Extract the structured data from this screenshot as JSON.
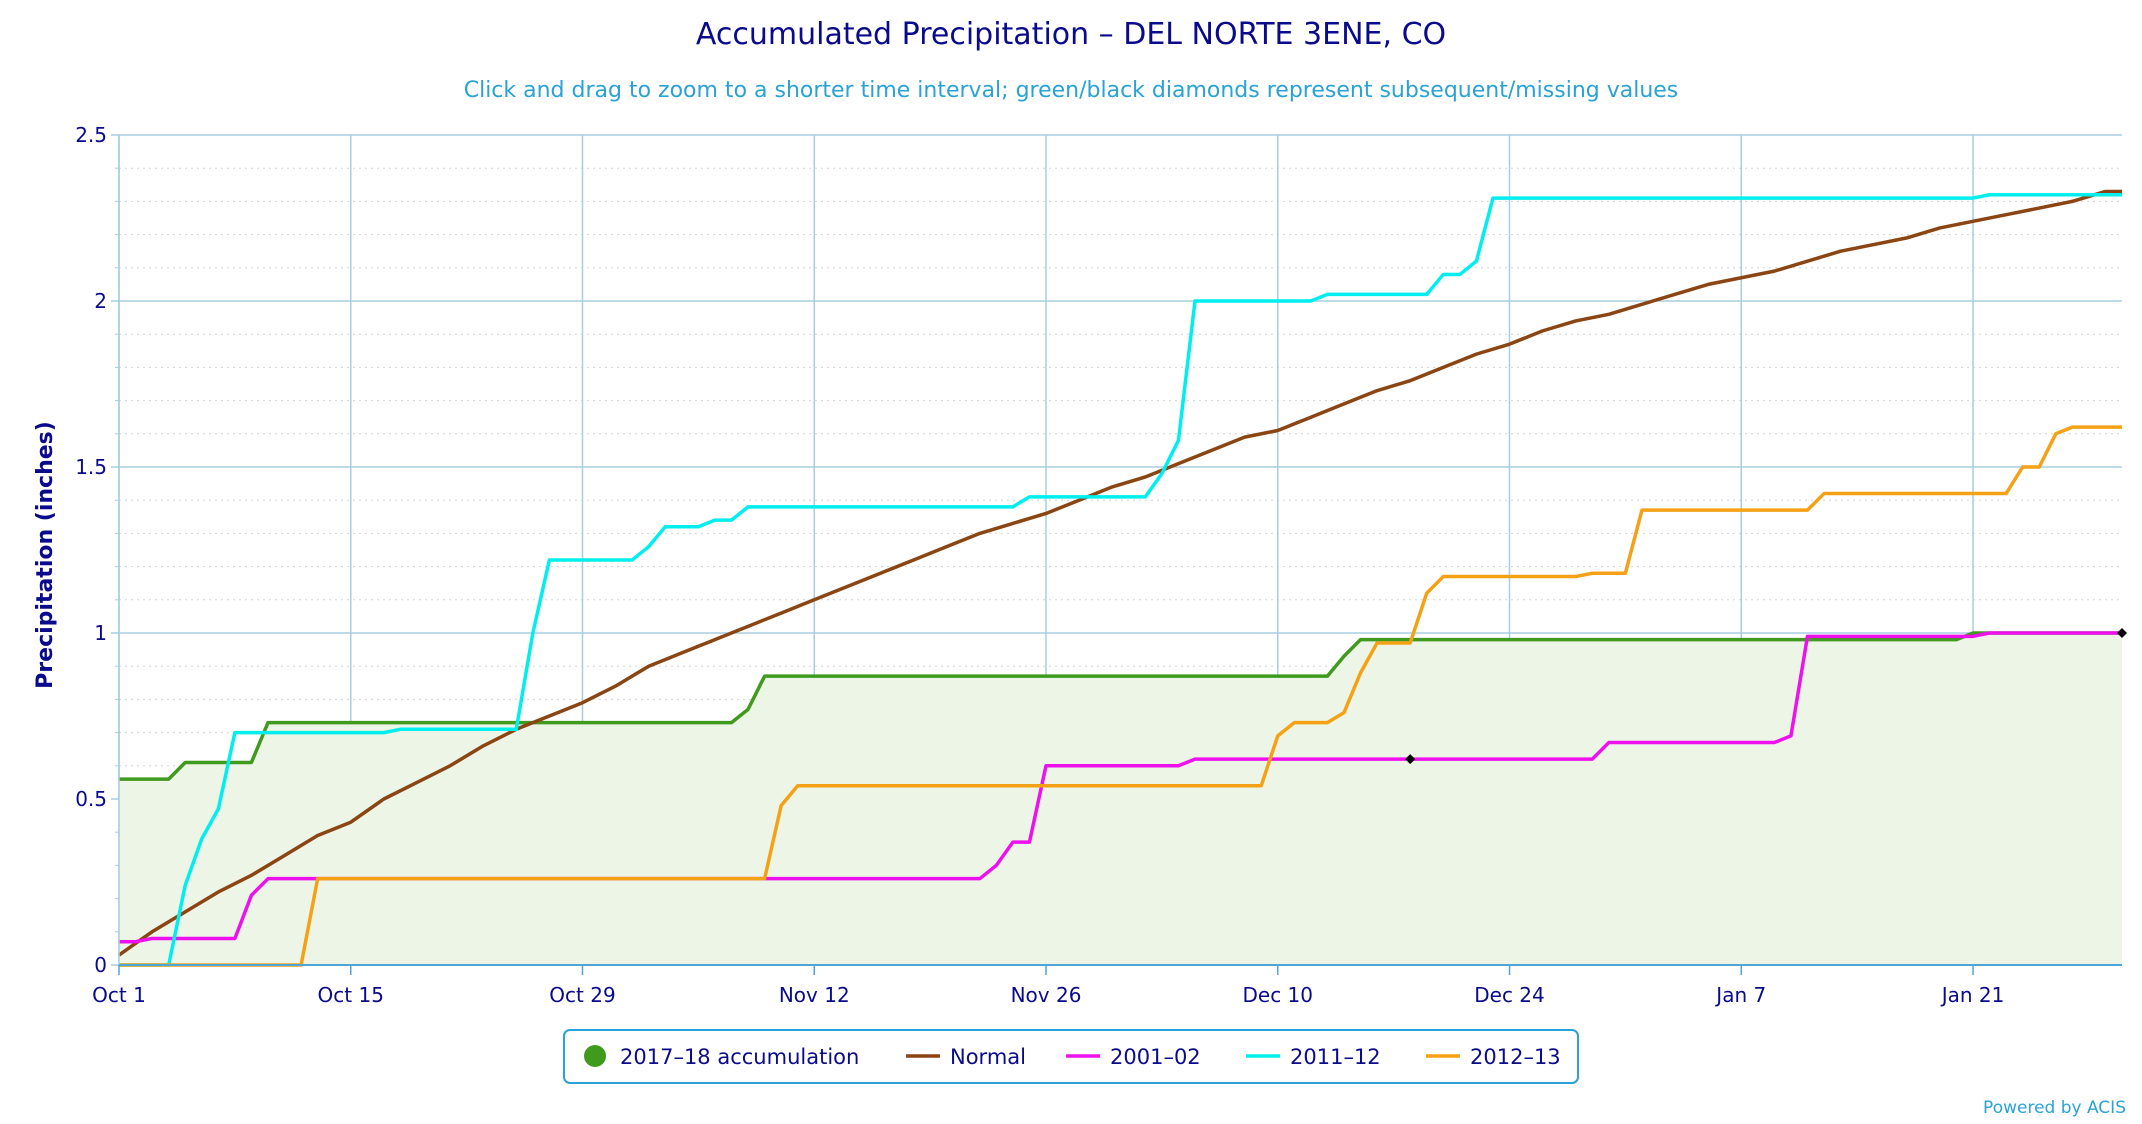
{
  "colors": {
    "title": "#0a0a8c",
    "subtitle": "#2aa2d6",
    "grid_major": "#a9cde0",
    "grid_minor": "#d4d4d4",
    "axis": "#4fa6d6",
    "fill_2017": "#edf5e6"
  },
  "chart_data": {
    "type": "line",
    "title": "Accumulated Precipitation – DEL NORTE 3ENE, CO",
    "subtitle": "Click and drag to zoom to a shorter time interval; green/black diamonds represent subsequent/missing values",
    "ylabel": "Precipitation (inches)",
    "xlabel": "",
    "x_unit": "days since Oct 1",
    "xlim": [
      0,
      121
    ],
    "ylim": [
      0,
      2.5
    ],
    "x_ticks": [
      {
        "x": 0,
        "label": "Oct 1"
      },
      {
        "x": 14,
        "label": "Oct 15"
      },
      {
        "x": 28,
        "label": "Oct 29"
      },
      {
        "x": 42,
        "label": "Nov 12"
      },
      {
        "x": 56,
        "label": "Nov 26"
      },
      {
        "x": 70,
        "label": "Dec 10"
      },
      {
        "x": 84,
        "label": "Dec 24"
      },
      {
        "x": 98,
        "label": "Jan 7"
      },
      {
        "x": 112,
        "label": "Jan 21"
      }
    ],
    "y_ticks": [
      {
        "y": 0,
        "label": "0"
      },
      {
        "y": 0.5,
        "label": "0.5"
      },
      {
        "y": 1,
        "label": "1"
      },
      {
        "y": 1.5,
        "label": "1.5"
      },
      {
        "y": 2,
        "label": "2"
      },
      {
        "y": 2.5,
        "label": "2.5"
      }
    ],
    "grid": true,
    "legend_position": "bottom-center",
    "series": [
      {
        "name": "2017–18 accumulation",
        "color": "#3f9a1d",
        "fill": true,
        "legend_symbol": "circle",
        "points": [
          [
            0,
            0.56
          ],
          [
            3,
            0.56
          ],
          [
            4,
            0.61
          ],
          [
            7,
            0.61
          ],
          [
            8,
            0.61
          ],
          [
            9,
            0.73
          ],
          [
            14,
            0.73
          ],
          [
            36,
            0.73
          ],
          [
            37,
            0.73
          ],
          [
            38,
            0.77
          ],
          [
            39,
            0.87
          ],
          [
            40,
            0.87
          ],
          [
            56,
            0.87
          ],
          [
            73,
            0.87
          ],
          [
            74,
            0.93
          ],
          [
            75,
            0.98
          ],
          [
            76,
            0.98
          ],
          [
            80,
            0.98
          ],
          [
            100,
            0.98
          ],
          [
            110,
            0.98
          ],
          [
            111,
            0.98
          ],
          [
            112,
            1.0
          ],
          [
            121,
            1.0
          ]
        ]
      },
      {
        "name": "Normal",
        "color": "#8b4513",
        "fill": false,
        "legend_symbol": "line",
        "points": [
          [
            0,
            0.03
          ],
          [
            2,
            0.1
          ],
          [
            4,
            0.16
          ],
          [
            6,
            0.22
          ],
          [
            8,
            0.27
          ],
          [
            10,
            0.33
          ],
          [
            12,
            0.39
          ],
          [
            14,
            0.43
          ],
          [
            16,
            0.5
          ],
          [
            18,
            0.55
          ],
          [
            20,
            0.6
          ],
          [
            22,
            0.66
          ],
          [
            24,
            0.71
          ],
          [
            26,
            0.75
          ],
          [
            28,
            0.79
          ],
          [
            30,
            0.84
          ],
          [
            32,
            0.9
          ],
          [
            34,
            0.94
          ],
          [
            36,
            0.98
          ],
          [
            38,
            1.02
          ],
          [
            40,
            1.06
          ],
          [
            42,
            1.1
          ],
          [
            44,
            1.14
          ],
          [
            46,
            1.18
          ],
          [
            48,
            1.22
          ],
          [
            50,
            1.26
          ],
          [
            52,
            1.3
          ],
          [
            54,
            1.33
          ],
          [
            56,
            1.36
          ],
          [
            58,
            1.4
          ],
          [
            60,
            1.44
          ],
          [
            62,
            1.47
          ],
          [
            64,
            1.51
          ],
          [
            66,
            1.55
          ],
          [
            68,
            1.59
          ],
          [
            70,
            1.61
          ],
          [
            72,
            1.65
          ],
          [
            74,
            1.69
          ],
          [
            76,
            1.73
          ],
          [
            78,
            1.76
          ],
          [
            80,
            1.8
          ],
          [
            82,
            1.84
          ],
          [
            84,
            1.87
          ],
          [
            86,
            1.91
          ],
          [
            88,
            1.94
          ],
          [
            90,
            1.96
          ],
          [
            92,
            1.99
          ],
          [
            94,
            2.02
          ],
          [
            96,
            2.05
          ],
          [
            98,
            2.07
          ],
          [
            100,
            2.09
          ],
          [
            102,
            2.12
          ],
          [
            104,
            2.15
          ],
          [
            106,
            2.17
          ],
          [
            108,
            2.19
          ],
          [
            110,
            2.22
          ],
          [
            112,
            2.24
          ],
          [
            114,
            2.26
          ],
          [
            116,
            2.28
          ],
          [
            118,
            2.3
          ],
          [
            120,
            2.33
          ],
          [
            121,
            2.33
          ]
        ]
      },
      {
        "name": "2001–02",
        "color": "#ee11ee",
        "fill": false,
        "legend_symbol": "line",
        "points": [
          [
            0,
            0.07
          ],
          [
            1,
            0.07
          ],
          [
            2,
            0.08
          ],
          [
            7,
            0.08
          ],
          [
            8,
            0.21
          ],
          [
            9,
            0.26
          ],
          [
            12,
            0.26
          ],
          [
            14,
            0.26
          ],
          [
            40,
            0.26
          ],
          [
            52,
            0.26
          ],
          [
            53,
            0.3
          ],
          [
            54,
            0.37
          ],
          [
            55,
            0.37
          ],
          [
            56,
            0.6
          ],
          [
            58,
            0.6
          ],
          [
            64,
            0.6
          ],
          [
            65,
            0.62
          ],
          [
            70,
            0.62
          ],
          [
            78,
            0.62
          ],
          [
            89,
            0.62
          ],
          [
            90,
            0.67
          ],
          [
            100,
            0.67
          ],
          [
            101,
            0.69
          ],
          [
            102,
            0.99
          ],
          [
            104,
            0.99
          ],
          [
            111,
            0.99
          ],
          [
            112,
            0.99
          ],
          [
            113,
            1.0
          ],
          [
            121,
            1.0
          ]
        ]
      },
      {
        "name": "2011–12",
        "color": "#00eeee",
        "fill": false,
        "legend_symbol": "line",
        "points": [
          [
            0,
            0
          ],
          [
            3,
            0
          ],
          [
            4,
            0.24
          ],
          [
            5,
            0.38
          ],
          [
            6,
            0.47
          ],
          [
            7,
            0.7
          ],
          [
            16,
            0.7
          ],
          [
            17,
            0.71
          ],
          [
            24,
            0.71
          ],
          [
            25,
            1.0
          ],
          [
            26,
            1.22
          ],
          [
            31,
            1.22
          ],
          [
            32,
            1.26
          ],
          [
            33,
            1.32
          ],
          [
            35,
            1.32
          ],
          [
            36,
            1.34
          ],
          [
            37,
            1.34
          ],
          [
            38,
            1.38
          ],
          [
            42,
            1.38
          ],
          [
            54,
            1.38
          ],
          [
            55,
            1.41
          ],
          [
            56,
            1.41
          ],
          [
            62,
            1.41
          ],
          [
            63,
            1.48
          ],
          [
            64,
            1.58
          ],
          [
            65,
            2.0
          ],
          [
            72,
            2.0
          ],
          [
            73,
            2.02
          ],
          [
            79,
            2.02
          ],
          [
            80,
            2.08
          ],
          [
            81,
            2.08
          ],
          [
            82,
            2.12
          ],
          [
            83,
            2.31
          ],
          [
            84,
            2.31
          ],
          [
            100,
            2.31
          ],
          [
            112,
            2.31
          ],
          [
            113,
            2.32
          ],
          [
            121,
            2.32
          ]
        ]
      },
      {
        "name": "2012–13",
        "color": "#f5a116",
        "fill": false,
        "legend_symbol": "line",
        "points": [
          [
            0,
            0
          ],
          [
            11,
            0
          ],
          [
            12,
            0.26
          ],
          [
            14,
            0.26
          ],
          [
            39,
            0.26
          ],
          [
            40,
            0.48
          ],
          [
            41,
            0.54
          ],
          [
            50,
            0.54
          ],
          [
            69,
            0.54
          ],
          [
            70,
            0.69
          ],
          [
            71,
            0.73
          ],
          [
            73,
            0.73
          ],
          [
            74,
            0.76
          ],
          [
            75,
            0.88
          ],
          [
            76,
            0.97
          ],
          [
            78,
            0.97
          ],
          [
            79,
            1.12
          ],
          [
            80,
            1.17
          ],
          [
            84,
            1.17
          ],
          [
            88,
            1.17
          ],
          [
            89,
            1.18
          ],
          [
            91,
            1.18
          ],
          [
            92,
            1.37
          ],
          [
            95,
            1.37
          ],
          [
            102,
            1.37
          ],
          [
            103,
            1.42
          ],
          [
            108,
            1.42
          ],
          [
            114,
            1.42
          ],
          [
            115,
            1.5
          ],
          [
            116,
            1.5
          ],
          [
            117,
            1.6
          ],
          [
            118,
            1.62
          ],
          [
            121,
            1.62
          ]
        ]
      }
    ],
    "markers": [
      {
        "x": 78,
        "y": 0.62,
        "shape": "diamond",
        "color": "#000000"
      },
      {
        "x": 121,
        "y": 1.0,
        "shape": "diamond",
        "color": "#000000"
      }
    ]
  },
  "credit": "Powered by ACIS"
}
